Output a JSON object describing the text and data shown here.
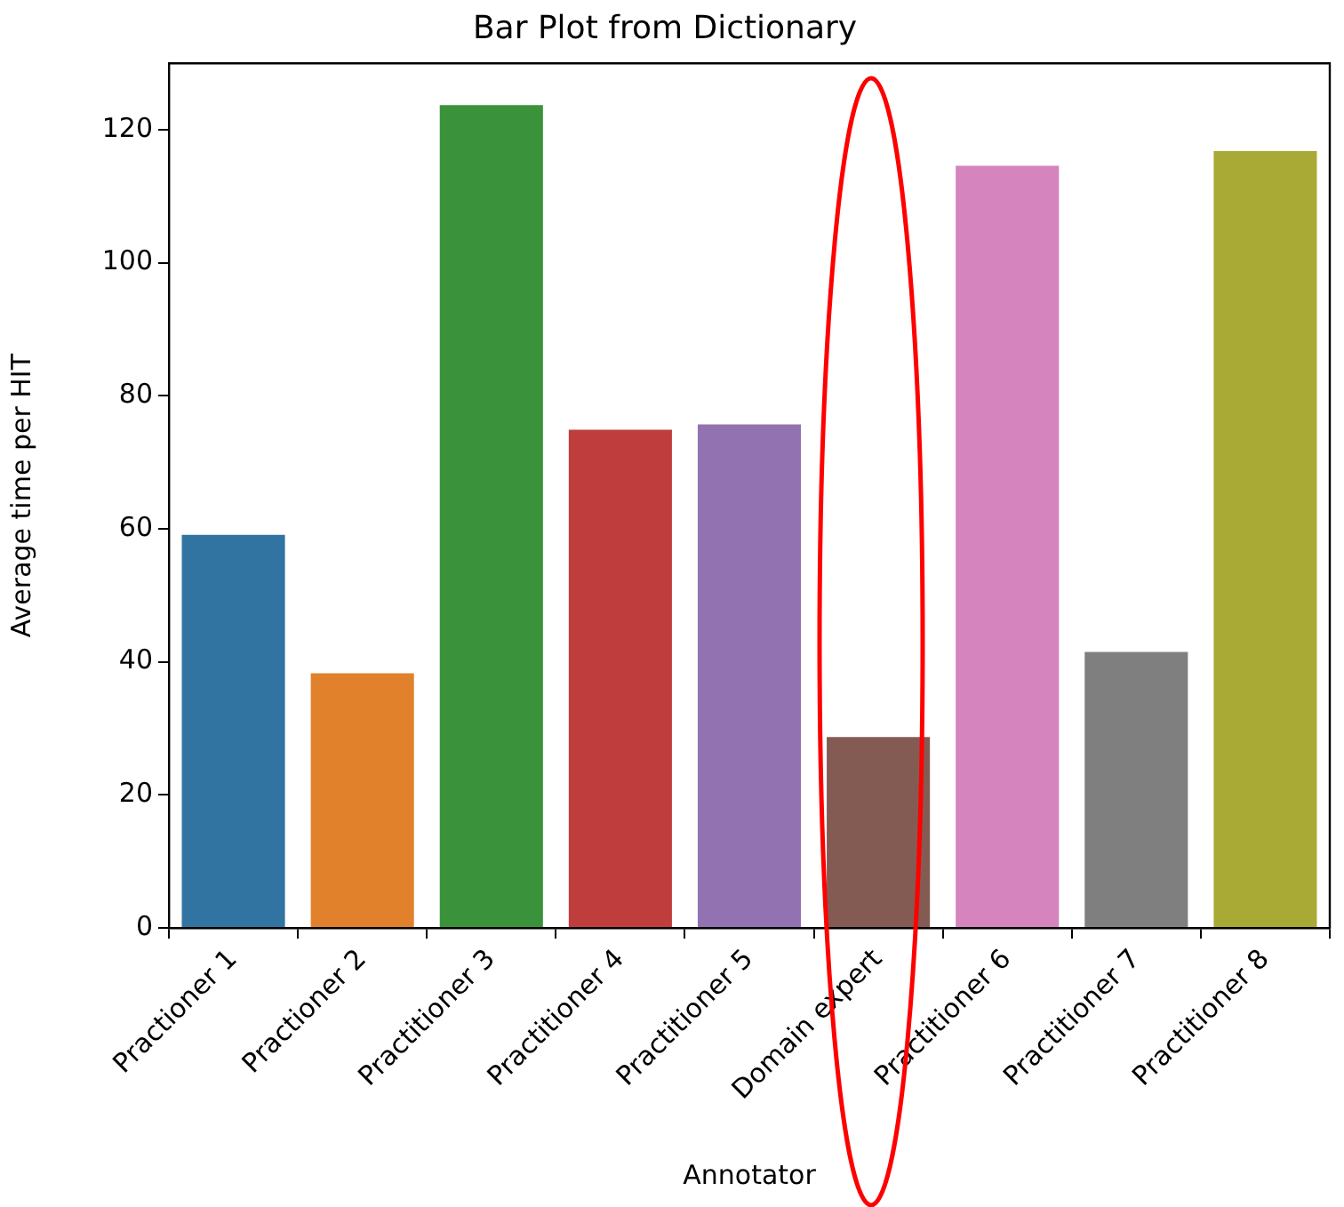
{
  "chart_data": {
    "type": "bar",
    "title": "Bar Plot from Dictionary",
    "xlabel": "Annotator",
    "ylabel": "Average time per HIT",
    "categories": [
      "Practioner 1",
      "Practioner 2",
      "Practitioner 3",
      "Practitioner 4",
      "Practitioner 5",
      "Domain expert",
      "Practitioner 6",
      "Practitioner 7",
      "Practitioner 8"
    ],
    "values": [
      59.1,
      38.3,
      123.7,
      74.9,
      75.7,
      28.7,
      114.6,
      41.5,
      116.8
    ],
    "colors": [
      "#3274a1",
      "#e1812c",
      "#3a923a",
      "#c03d3e",
      "#9372b2",
      "#845b53",
      "#d684bd",
      "#7f7f7f",
      "#a9aa35"
    ],
    "ylim": [
      0,
      130
    ],
    "yticks": [
      0,
      20,
      40,
      60,
      80,
      100,
      120
    ],
    "grid": false,
    "legend": false
  }
}
